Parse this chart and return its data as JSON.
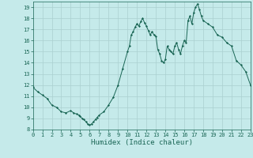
{
  "title": "",
  "xlabel": "Humidex (Indice chaleur)",
  "xlim": [
    0,
    23
  ],
  "ylim": [
    8,
    19.5
  ],
  "yticks": [
    8,
    9,
    10,
    11,
    12,
    13,
    14,
    15,
    16,
    17,
    18,
    19
  ],
  "xticks": [
    0,
    1,
    2,
    3,
    4,
    5,
    6,
    7,
    8,
    9,
    10,
    11,
    12,
    13,
    14,
    15,
    16,
    17,
    18,
    19,
    20,
    21,
    22,
    23
  ],
  "bg_color": "#c5eaea",
  "grid_color": "#aad0d0",
  "line_color": "#1a6655",
  "x": [
    0.0,
    0.5,
    1.0,
    1.5,
    2.0,
    2.5,
    3.0,
    3.5,
    4.0,
    4.3,
    4.6,
    4.9,
    5.0,
    5.2,
    5.4,
    5.6,
    5.8,
    6.0,
    6.2,
    6.4,
    6.6,
    6.8,
    7.0,
    7.5,
    8.0,
    8.5,
    9.0,
    9.5,
    10.0,
    10.2,
    10.4,
    10.6,
    10.8,
    11.0,
    11.2,
    11.4,
    11.6,
    11.8,
    12.0,
    12.2,
    12.4,
    12.6,
    12.8,
    13.0,
    13.2,
    13.4,
    13.6,
    13.8,
    14.0,
    14.2,
    14.4,
    14.6,
    14.8,
    15.0,
    15.2,
    15.4,
    15.6,
    15.8,
    16.0,
    16.2,
    16.4,
    16.6,
    16.8,
    17.0,
    17.2,
    17.4,
    17.6,
    17.8,
    18.0,
    18.5,
    19.0,
    19.5,
    20.0,
    20.5,
    21.0,
    21.5,
    22.0,
    22.5,
    23.0
  ],
  "y": [
    11.8,
    11.4,
    11.1,
    10.8,
    10.2,
    10.0,
    9.6,
    9.5,
    9.7,
    9.5,
    9.4,
    9.3,
    9.2,
    9.0,
    8.9,
    8.7,
    8.5,
    8.4,
    8.5,
    8.7,
    8.9,
    9.1,
    9.3,
    9.6,
    10.2,
    10.9,
    12.0,
    13.5,
    15.0,
    15.5,
    16.5,
    16.8,
    17.2,
    17.5,
    17.3,
    17.7,
    18.0,
    17.6,
    17.3,
    16.9,
    16.5,
    16.8,
    16.5,
    16.4,
    15.2,
    14.8,
    14.2,
    14.0,
    14.3,
    15.5,
    15.2,
    15.0,
    14.8,
    15.5,
    15.8,
    15.2,
    14.8,
    15.5,
    16.0,
    15.8,
    17.8,
    18.2,
    17.5,
    18.5,
    19.0,
    19.3,
    18.8,
    18.2,
    17.8,
    17.5,
    17.2,
    16.5,
    16.3,
    15.8,
    15.5,
    14.2,
    13.8,
    13.2,
    12.0
  ]
}
